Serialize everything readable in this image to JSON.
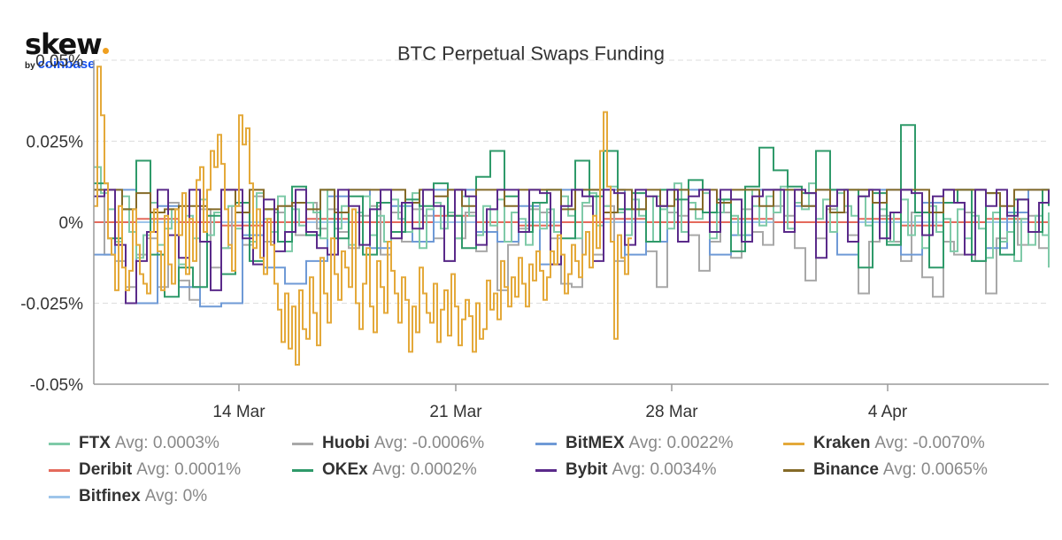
{
  "logo": {
    "brand": "skew",
    "by": "by",
    "parent": "coinbase"
  },
  "chart_data": {
    "type": "line",
    "title": "BTC Perpetual Swaps Funding",
    "xlabel": "",
    "ylabel": "",
    "x_ticks": [
      "14 Mar",
      "21 Mar",
      "28 Mar",
      "4 Apr"
    ],
    "y_ticks": [
      "0.05%",
      "0.025%",
      "0%",
      "-0.025%",
      "-0.05%"
    ],
    "ylim": [
      -0.05,
      0.05
    ],
    "y_unit": "%",
    "grid": true,
    "legend_position": "bottom",
    "series": [
      {
        "name": "FTX",
        "avg_label": "Avg: 0.0003%",
        "color": "#7fcaa8",
        "step": 8,
        "values": [
          0.017,
          0.009,
          0.004,
          -0.006,
          0.008,
          -0.003,
          -0.011,
          -0.004,
          0.006,
          -0.007,
          -0.002,
          0.004,
          -0.013,
          0.002,
          -0.005,
          0.007,
          -0.004,
          0.003,
          -0.008,
          0.005,
          -0.002,
          0.006,
          -0.006,
          0.009,
          0.001,
          -0.003,
          0.008,
          -0.009,
          0.004,
          -0.001,
          0.006,
          0.003,
          -0.005,
          0.01,
          -0.002,
          0.005,
          -0.007,
          0.003,
          0.008,
          -0.004,
          0.002,
          -0.006,
          0.007,
          0.001,
          -0.003,
          0.009,
          -0.008,
          0.004,
          0.006,
          -0.002,
          0.003,
          -0.005,
          0.008,
          0.002,
          -0.004,
          0.005,
          -0.001,
          0.007,
          -0.006,
          0.003,
          0.001,
          -0.007,
          0.006,
          -0.002,
          0.004,
          -0.003,
          0.008,
          0.002,
          -0.005,
          0.006,
          0.009,
          -0.001,
          0.005,
          0.011,
          0.003,
          -0.004,
          0.007,
          0.002,
          -0.006,
          0.008,
          0.004,
          -0.002,
          0.012,
          -0.003,
          0.006,
          0.001,
          0.009,
          -0.005,
          0.003,
          0.007,
          0.002,
          -0.004,
          0.01,
          0.005,
          -0.001,
          0.008,
          0.003,
          0.011,
          -0.002,
          0.006,
          0.004,
          0.012,
          0.001,
          0.007,
          -0.003,
          0.009,
          0.005,
          0.002,
          0.008,
          -0.001,
          0.006,
          0.004,
          -0.006,
          0.003,
          0.007,
          -0.004,
          0.002,
          -0.008,
          0.005,
          -0.003,
          0.001,
          -0.009,
          0.004,
          -0.005,
          0.002,
          -0.002,
          -0.011,
          0.003,
          -0.006,
          -0.003,
          -0.012,
          0.001,
          -0.007,
          0.002,
          -0.004,
          -0.009,
          0.003,
          -0.006,
          -0.001,
          -0.008,
          0.002,
          -0.012,
          -0.004,
          -0.007,
          -0.014,
          -0.009,
          -0.006
        ]
      },
      {
        "name": "Huobi",
        "avg_label": "Avg: -0.0006%",
        "color": "#a8a8a8",
        "step": 12,
        "values": [
          0.01,
          -0.01,
          -0.012,
          -0.02,
          -0.01,
          -0.005,
          -0.02,
          0.006,
          -0.018,
          -0.024,
          0.004,
          -0.014,
          -0.008,
          0.005,
          -0.007,
          0.008,
          -0.006,
          0.003,
          0.005,
          -0.004,
          0.006,
          -0.002,
          0.004,
          -0.003,
          -0.008,
          0.002,
          0.005,
          -0.01,
          0.003,
          -0.006,
          0.004,
          0.002,
          -0.005,
          -0.012,
          -0.005,
          0.003,
          -0.009,
          0.004,
          -0.021,
          -0.007,
          -0.002,
          0.004,
          0.003,
          -0.005,
          -0.019,
          -0.02,
          0.005,
          -0.01,
          0.005,
          -0.012,
          0.004,
          0.004,
          -0.009,
          -0.02,
          0.003,
          0.002,
          -0.004,
          -0.015,
          -0.006,
          0.003,
          -0.011,
          0.004,
          -0.003,
          -0.007,
          0.005,
          0.002,
          -0.008,
          -0.018,
          -0.005,
          0.004,
          0.003,
          -0.004,
          -0.022,
          -0.006,
          0.002,
          -0.006,
          -0.012,
          0.003,
          -0.017,
          -0.023,
          -0.006,
          -0.01,
          0.003,
          -0.012,
          -0.022,
          -0.005,
          0.003,
          -0.007,
          0.002,
          -0.008,
          -0.004,
          -0.003
        ]
      },
      {
        "name": "BitMEX",
        "avg_label": "Avg: 0.0022%",
        "color": "#6f9ad6",
        "step": 24,
        "values": [
          -0.01,
          0.01,
          -0.025,
          0.005,
          -0.02,
          -0.026,
          -0.025,
          -0.004,
          -0.014,
          -0.019,
          -0.012,
          0.008,
          0.01,
          -0.008,
          0.005,
          -0.006,
          0.01,
          0.01,
          -0.003,
          -0.006,
          0.005,
          -0.013,
          0.01,
          0.01,
          0.01,
          -0.01,
          -0.006,
          0.01,
          0.01,
          -0.01,
          -0.004,
          0.01,
          0.01,
          0.005,
          0.01,
          -0.01,
          0.01,
          0.01,
          -0.01,
          0.006,
          0.01,
          0.01,
          -0.008,
          0.003,
          0.01,
          0.01
        ]
      },
      {
        "name": "Kraken",
        "avg_label": "Avg: -0.0070%",
        "color": "#e4a93a",
        "step": 4,
        "values": [
          0.005,
          0.048,
          0.033,
          0.012,
          -0.005,
          -0.01,
          -0.021,
          0.005,
          -0.014,
          -0.021,
          -0.015,
          0.004,
          -0.007,
          -0.016,
          -0.019,
          -0.022,
          -0.003,
          0.004,
          -0.009,
          -0.021,
          0.002,
          -0.013,
          -0.019,
          0.004,
          -0.004,
          0.009,
          -0.016,
          0.001,
          -0.012,
          0.013,
          0.017,
          -0.003,
          0.01,
          0.022,
          0.017,
          0.027,
          0.018,
          0.004,
          -0.007,
          -0.015,
          0.005,
          0.033,
          0.024,
          0.029,
          0.012,
          -0.008,
          0.004,
          -0.011,
          -0.016,
          0.001,
          -0.007,
          -0.019,
          -0.027,
          -0.037,
          -0.022,
          -0.039,
          -0.026,
          -0.044,
          -0.021,
          -0.033,
          -0.036,
          -0.017,
          -0.028,
          -0.038,
          -0.011,
          -0.022,
          -0.031,
          -0.005,
          -0.016,
          -0.024,
          -0.009,
          -0.014,
          -0.02,
          0.004,
          -0.025,
          -0.033,
          -0.019,
          -0.008,
          -0.026,
          -0.034,
          -0.012,
          -0.02,
          -0.028,
          -0.006,
          -0.015,
          -0.022,
          -0.031,
          -0.017,
          -0.024,
          -0.04,
          -0.026,
          -0.034,
          -0.014,
          -0.022,
          -0.028,
          -0.031,
          -0.019,
          -0.037,
          -0.027,
          -0.021,
          -0.035,
          -0.016,
          -0.026,
          -0.038,
          -0.03,
          -0.024,
          -0.029,
          -0.04,
          -0.025,
          -0.036,
          -0.033,
          -0.018,
          -0.027,
          -0.022,
          -0.03,
          -0.012,
          -0.02,
          -0.026,
          -0.017,
          -0.023,
          -0.011,
          -0.019,
          -0.026,
          -0.013,
          -0.018,
          -0.009,
          -0.015,
          -0.024,
          -0.017,
          -0.009,
          -0.013,
          -0.004,
          -0.01,
          -0.022,
          -0.016,
          -0.007,
          -0.012,
          -0.017,
          -0.01,
          -0.003,
          -0.014,
          0.002,
          -0.008,
          0.022,
          0.034,
          0.011,
          -0.006,
          -0.036,
          -0.004,
          -0.011,
          -0.016,
          -0.005
        ]
      },
      {
        "name": "Deribit",
        "avg_label": "Avg: 0.0001%",
        "color": "#e46a5c",
        "step": 48,
        "values": [
          0,
          0.001,
          0,
          -0.001,
          0,
          0.001,
          0,
          0,
          0.002,
          0,
          -0.001,
          0,
          0.001,
          0,
          0,
          0.001,
          0,
          0,
          0.001,
          -0.001,
          0,
          0.001,
          0
        ]
      },
      {
        "name": "OKEx",
        "avg_label": "Avg: 0.0002%",
        "color": "#2f9a6a",
        "step": 16,
        "values": [
          0.012,
          -0.005,
          0.004,
          0.019,
          -0.01,
          -0.023,
          -0.014,
          -0.02,
          0.002,
          -0.016,
          0.006,
          -0.012,
          0.004,
          -0.006,
          0.011,
          -0.004,
          0.01,
          -0.005,
          0.008,
          -0.01,
          0.006,
          -0.003,
          0.007,
          0.005,
          0.012,
          0.002,
          -0.008,
          0.014,
          0.022,
          0.008,
          -0.003,
          0.006,
          0.01,
          -0.005,
          0.019,
          0.008,
          0.022,
          0.004,
          0.009,
          -0.006,
          0.01,
          0.007,
          0.013,
          0.003,
          0.007,
          -0.009,
          0.011,
          0.023,
          0.016,
          0.011,
          0.009,
          0.022,
          0.01,
          0.01,
          -0.014,
          0.009,
          -0.007,
          0.03,
          0.003,
          -0.014,
          0.006,
          0.01,
          -0.012,
          0.009,
          -0.01,
          0.007,
          -0.003,
          0.01,
          0.009,
          0.005
        ]
      },
      {
        "name": "Bybit",
        "avg_label": "Avg: 0.0034%",
        "color": "#5a2a8a",
        "step": 12,
        "values": [
          0.008,
          0.01,
          -0.007,
          -0.025,
          -0.012,
          -0.003,
          0.01,
          -0.004,
          -0.011,
          0.01,
          -0.006,
          -0.021,
          0.01,
          0.01,
          -0.005,
          -0.013,
          0.007,
          -0.009,
          -0.003,
          0.01,
          -0.003,
          -0.008,
          -0.01,
          0.01,
          0.005,
          -0.007,
          0.004,
          0.01,
          -0.005,
          0.006,
          -0.002,
          0.01,
          0.005,
          -0.012,
          0.01,
          0.008,
          -0.007,
          0.004,
          0.01,
          0.01,
          -0.003,
          0.01,
          0.009,
          -0.013,
          0.005,
          0.01,
          0.008,
          -0.012,
          0.01,
          0.009,
          -0.007,
          0.01,
          0.008,
          0.005,
          0.01,
          -0.006,
          0.008,
          0.01,
          -0.003,
          0.01,
          0.007,
          -0.006,
          0.008,
          0.01,
          0.01,
          -0.003,
          0.01,
          0.009,
          -0.011,
          0.005,
          0.01,
          -0.006,
          0.008,
          0.01,
          -0.005,
          0.003,
          0.01,
          0.009,
          -0.004,
          0.008,
          0.01,
          0.006,
          -0.01,
          0.01,
          0.005,
          0.01,
          0.002,
          0.007,
          -0.003,
          0.006,
          0.01,
          0.007
        ]
      },
      {
        "name": "Binance",
        "avg_label": "Avg: 0.0065%",
        "color": "#846a28",
        "step": 16,
        "values": [
          0.01,
          0.01,
          0.004,
          0.009,
          0.003,
          0.004,
          0.005,
          0.005,
          0.004,
          0.01,
          0.003,
          0.01,
          0.004,
          0.005,
          0.006,
          0.004,
          0.01,
          0.003,
          0.01,
          0.01,
          0.01,
          0.01,
          0.006,
          0.01,
          0.008,
          0.01,
          0.005,
          0.01,
          0.01,
          0.005,
          0.01,
          0.01,
          0.01,
          0.004,
          0.01,
          0.01,
          0.003,
          0.01,
          0.004,
          0.01,
          0.005,
          0.01,
          0.004,
          0.01,
          0.006,
          0.01,
          0.01,
          0.005,
          0.01,
          0.01,
          0.005,
          0.01,
          0.003,
          0.01,
          0.01,
          0.006,
          0.01,
          0.01,
          0.01,
          0.003,
          0.01,
          0.01,
          0.01,
          0.009,
          0.005,
          0.01,
          0.01,
          0.01,
          0.009
        ]
      },
      {
        "name": "Bitfinex",
        "avg_label": "Avg: 0%",
        "color": "#9ec5ea",
        "step": 80,
        "values": [
          0,
          0,
          0,
          0,
          0,
          0,
          0,
          0,
          0,
          0,
          0,
          0,
          0,
          0,
          0
        ]
      }
    ]
  },
  "colors": {
    "grid": "#dedede",
    "axis": "#9a9a9a",
    "tick_text": "#333333",
    "title": "#333333"
  }
}
